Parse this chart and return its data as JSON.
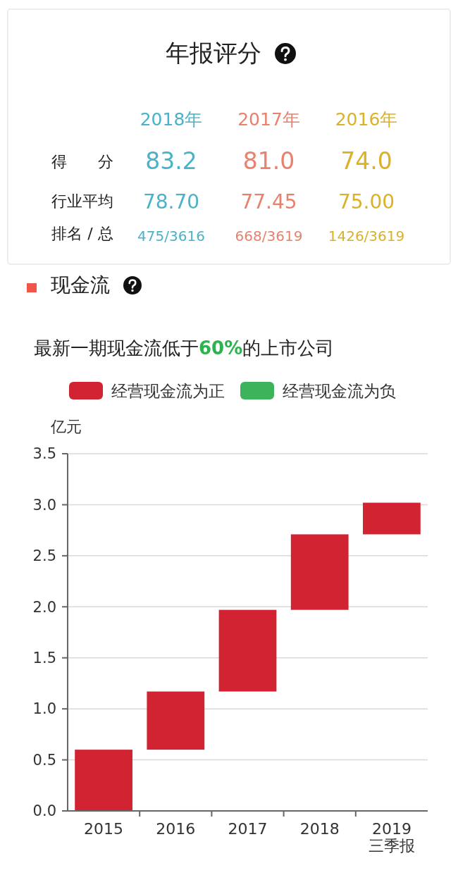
{
  "chart_data": [
    {
      "type": "other",
      "title": "年报评分",
      "categories": [
        "2018年",
        "2017年",
        "2016年"
      ],
      "colors": [
        "#4ab3c9",
        "#e8826e",
        "#dcb12a"
      ],
      "y_categories": [
        "得　　分",
        "行业平均",
        "排名 / 总"
      ],
      "cell_labels": [
        [
          "83.2",
          "81.0",
          "74.0"
        ],
        [
          "78.70",
          "77.45",
          "75.00"
        ],
        [
          "475/3616",
          "668/3619",
          "1426/3619"
        ]
      ]
    },
    {
      "type": "bar",
      "title": "现金流",
      "subtitle": "最新一期现金流低于60%的上市公司",
      "ylabel": "亿元",
      "categories": [
        "2015",
        "2016",
        "2017",
        "2018",
        "2019\n三季报"
      ],
      "series": [
        {
          "name": "经营现金流为正",
          "color": "#d12331",
          "base": [
            0,
            0.6,
            1.17,
            1.97,
            2.71
          ],
          "values": [
            0.6,
            0.57,
            0.8,
            0.74,
            0.31
          ]
        },
        {
          "name": "经营现金流为负",
          "color": "#3db35c",
          "values": [
            null,
            null,
            null,
            null,
            null
          ]
        }
      ],
      "ylim": [
        0,
        3.5
      ],
      "yticks": [
        {
          "value": 0,
          "label": "0.0"
        },
        0.5,
        {
          "value": 1,
          "label": "1.0"
        },
        1.5,
        {
          "value": 2,
          "label": "2.0"
        },
        2.5,
        {
          "value": 3,
          "label": "3.0"
        },
        3.5
      ],
      "grid": "y",
      "legend": "top"
    }
  ]
}
